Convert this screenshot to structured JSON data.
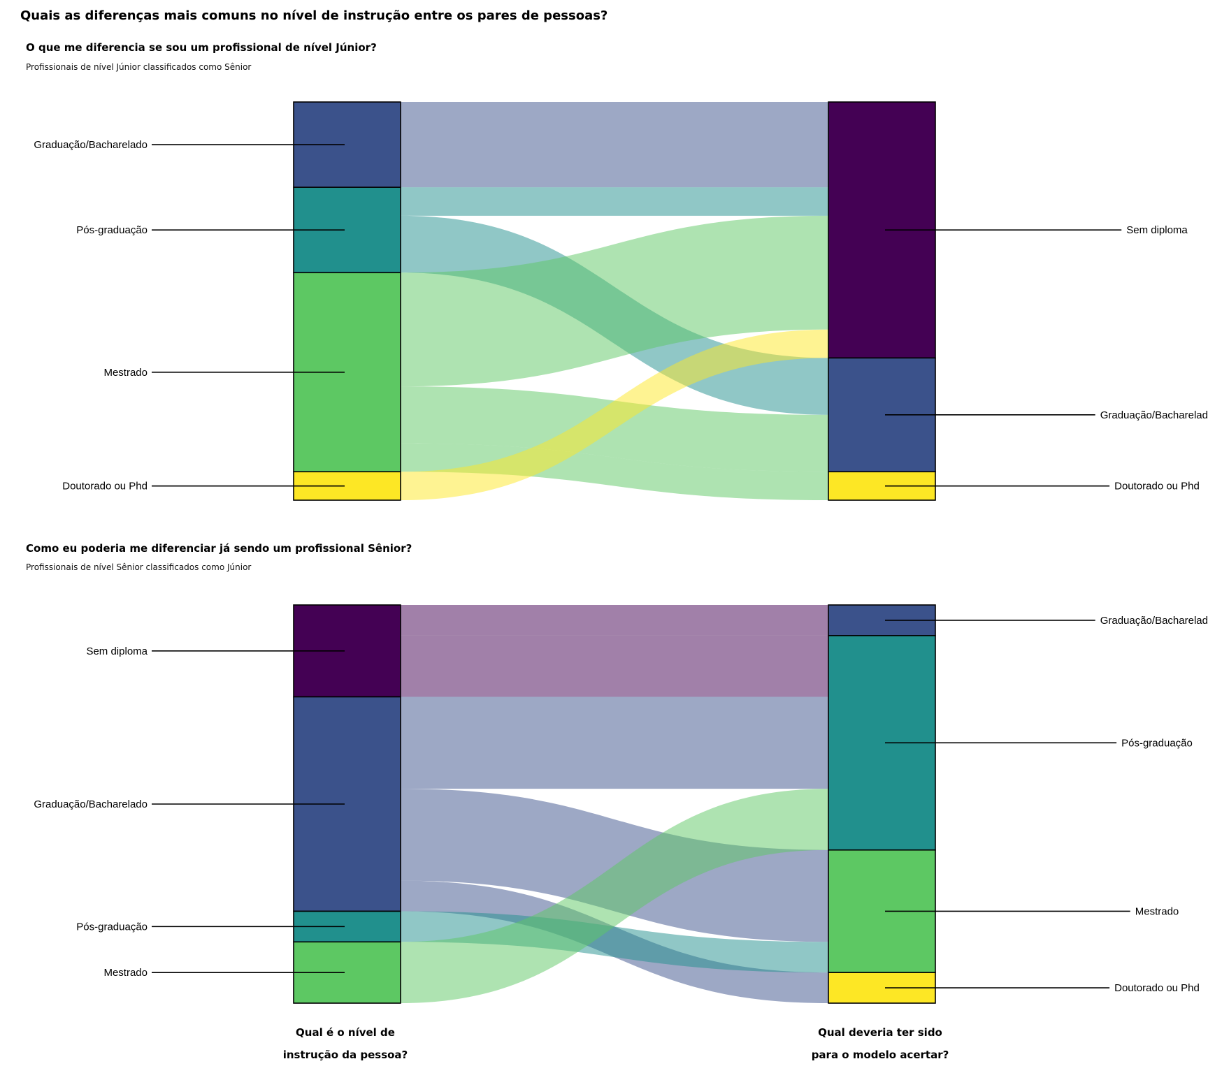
{
  "main_title": "Quais as diferenças mais comuns no nível de instrução entre os pares de pessoas?",
  "colors": {
    "Sem diploma": "#440154",
    "Graduação/Bacharelado": "#3b528b",
    "Pós-graduação": "#21908d",
    "Mestrado": "#5dc863",
    "Doutorado ou Phd": "#fde725"
  },
  "axis_titles": {
    "left": [
      "Qual é o nível de",
      "instrução da pessoa?"
    ],
    "right": [
      "Qual deveria ter sido",
      "para o modelo acertar?"
    ]
  },
  "chart_data": [
    {
      "type": "sankey",
      "title": "O que me diferencia se sou um profissional de nível Júnior?",
      "subtitle": "Profissionais de nível Júnior classificados como Sênior",
      "left_nodes": [
        {
          "label": "Graduação/Bacharelado",
          "value": 3
        },
        {
          "label": "Pós-graduação",
          "value": 3
        },
        {
          "label": "Mestrado",
          "value": 7
        },
        {
          "label": "Doutorado ou Phd",
          "value": 1
        }
      ],
      "right_nodes": [
        {
          "label": "Sem diploma",
          "value": 9
        },
        {
          "label": "Graduação/Bacharelado",
          "value": 4
        },
        {
          "label": "Doutorado ou Phd",
          "value": 1
        }
      ],
      "flows": [
        {
          "from": "Graduação/Bacharelado",
          "to": "Sem diploma",
          "value": 3
        },
        {
          "from": "Pós-graduação",
          "to": "Sem diploma",
          "value": 1
        },
        {
          "from": "Pós-graduação",
          "to": "Graduação/Bacharelado",
          "value": 2
        },
        {
          "from": "Mestrado",
          "to": "Sem diploma",
          "value": 4
        },
        {
          "from": "Mestrado",
          "to": "Graduação/Bacharelado",
          "value": 2
        },
        {
          "from": "Mestrado",
          "to": "Doutorado ou Phd",
          "value": 1
        },
        {
          "from": "Doutorado ou Phd",
          "to": "Sem diploma",
          "value": 1
        }
      ]
    },
    {
      "type": "sankey",
      "title": "Como eu poderia me diferenciar já sendo um profissional Sênior?",
      "subtitle": "Profissionais de nível Sênior classificados como Júnior",
      "left_nodes": [
        {
          "label": "Sem diploma",
          "value": 3
        },
        {
          "label": "Graduação/Bacharelado",
          "value": 7
        },
        {
          "label": "Pós-graduação",
          "value": 1
        },
        {
          "label": "Mestrado",
          "value": 2
        }
      ],
      "right_nodes": [
        {
          "label": "Graduação/Bacharelado",
          "value": 1
        },
        {
          "label": "Pós-graduação",
          "value": 7
        },
        {
          "label": "Mestrado",
          "value": 4
        },
        {
          "label": "Doutorado ou Phd",
          "value": 1
        }
      ],
      "flows": [
        {
          "from": "Sem diploma",
          "to": "Graduação/Bacharelado",
          "value": 1
        },
        {
          "from": "Sem diploma",
          "to": "Pós-graduação",
          "value": 2
        },
        {
          "from": "Graduação/Bacharelado",
          "to": "Pós-graduação",
          "value": 3
        },
        {
          "from": "Graduação/Bacharelado",
          "to": "Mestrado",
          "value": 3
        },
        {
          "from": "Graduação/Bacharelado",
          "to": "Doutorado ou Phd",
          "value": 1
        },
        {
          "from": "Pós-graduação",
          "to": "Mestrado",
          "value": 1
        },
        {
          "from": "Mestrado",
          "to": "Pós-graduação",
          "value": 2
        }
      ]
    }
  ]
}
